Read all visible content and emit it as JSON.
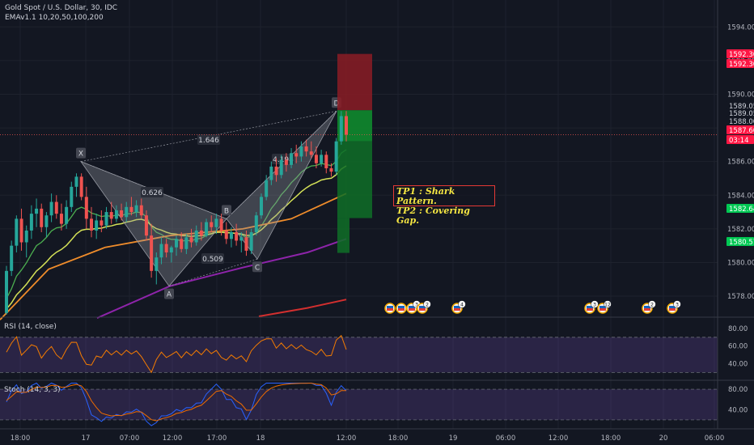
{
  "header": {
    "symbol_line": "Gold Spot / U.S. Dollar, 30, IDC",
    "ema_line": "EMAv1.1 10,20,50,100,200"
  },
  "annotations": {
    "tp1": "TP1 : Shark Pattern.",
    "tp2": "TP2 : Covering Gap."
  },
  "colors": {
    "background": "#131722",
    "bull_candle": "#26a69a",
    "bear_candle": "#ef5350",
    "ema10": "#4caf50",
    "ema20": "#d4e157",
    "ema50": "#ef8c2b",
    "ema100": "#8e24aa",
    "ema200": "#d32f2f",
    "rsi": "#f57c00",
    "stoch_k": "#2962ff",
    "stoch_d": "#ef6c00",
    "pattern_fill": "#9598a1"
  },
  "chart_data": [
    {
      "type": "candlestick",
      "title": "Gold Spot / U.S. Dollar, 30, IDC",
      "y_range": [
        1576.8,
        1595.6
      ],
      "y_ticks": [
        "1594.00",
        "1592.00",
        "1590.00",
        "1588.00",
        "1586.00",
        "1584.00",
        "1582.00",
        "1580.00",
        "1578.00"
      ],
      "x_ticks": [
        "18:00",
        "17",
        "07:00",
        "12:00",
        "17:00",
        "18",
        "12:00",
        "18:00",
        "19",
        "06:00",
        "12:00",
        "18:00",
        "20",
        "06:00"
      ],
      "price_labels": [
        {
          "value": "1592.30",
          "color": "#ff1744"
        },
        {
          "value": "1592.30",
          "color": "#ff1744"
        },
        {
          "value": "1589.05",
          "color": "#131722"
        },
        {
          "value": "1589.05",
          "color": "#131722"
        },
        {
          "value": "1588.00",
          "color": "#131722"
        },
        {
          "value": "1587.60",
          "color": "#ff1744"
        },
        {
          "value": "03:14",
          "color": "#ff1744"
        },
        {
          "value": "1582.64",
          "color": "#00c853"
        },
        {
          "value": "1580.57",
          "color": "#00c853"
        }
      ],
      "current_price": 1587.6,
      "harmonic_points": [
        {
          "label": "X",
          "price": 1586.0
        },
        {
          "label": "A",
          "price": 1578.6
        },
        {
          "label": "B",
          "price": 1582.6
        },
        {
          "label": "C",
          "price": 1580.2
        },
        {
          "label": "D",
          "price": 1589.0
        }
      ],
      "ratios": [
        "1.646",
        "0.626",
        "0.509",
        "4.198"
      ],
      "position": {
        "stop": 1592.3,
        "entry": 1589.05,
        "tp1": 1582.64,
        "tp2": 1580.57
      },
      "candles_ohlc": [
        [
          1577.0,
          1579.8,
          1576.9,
          1579.5
        ],
        [
          1579.5,
          1581.3,
          1579.2,
          1581.0
        ],
        [
          1581.0,
          1582.8,
          1580.6,
          1582.6
        ],
        [
          1582.6,
          1583.2,
          1580.7,
          1581.2
        ],
        [
          1581.2,
          1582.2,
          1580.3,
          1581.9
        ],
        [
          1581.9,
          1583.4,
          1581.4,
          1582.9
        ],
        [
          1582.9,
          1583.8,
          1582.1,
          1583.2
        ],
        [
          1583.2,
          1583.5,
          1581.8,
          1582.1
        ],
        [
          1582.1,
          1583.0,
          1581.5,
          1582.8
        ],
        [
          1582.8,
          1584.1,
          1582.4,
          1583.6
        ],
        [
          1583.6,
          1584.0,
          1582.6,
          1582.9
        ],
        [
          1582.9,
          1583.5,
          1581.9,
          1582.3
        ],
        [
          1582.3,
          1583.7,
          1582.0,
          1583.3
        ],
        [
          1583.3,
          1584.8,
          1583.0,
          1584.5
        ],
        [
          1584.5,
          1585.3,
          1583.9,
          1585.1
        ],
        [
          1585.1,
          1585.3,
          1583.7,
          1583.9
        ],
        [
          1583.9,
          1584.5,
          1582.0,
          1582.6
        ],
        [
          1582.6,
          1583.3,
          1581.5,
          1581.9
        ],
        [
          1581.9,
          1582.9,
          1581.4,
          1582.5
        ],
        [
          1582.5,
          1583.1,
          1581.8,
          1582.2
        ],
        [
          1582.2,
          1583.3,
          1582.0,
          1583.0
        ],
        [
          1583.0,
          1583.6,
          1582.3,
          1582.6
        ],
        [
          1582.6,
          1583.4,
          1582.4,
          1583.1
        ],
        [
          1583.1,
          1583.5,
          1582.5,
          1582.7
        ],
        [
          1582.7,
          1583.6,
          1582.4,
          1583.3
        ],
        [
          1583.3,
          1583.9,
          1582.8,
          1583.0
        ],
        [
          1583.0,
          1583.7,
          1582.7,
          1583.4
        ],
        [
          1583.4,
          1583.8,
          1582.6,
          1582.8
        ],
        [
          1582.8,
          1583.1,
          1581.3,
          1581.6
        ],
        [
          1581.6,
          1582.3,
          1579.1,
          1579.5
        ],
        [
          1579.5,
          1580.6,
          1578.7,
          1580.3
        ],
        [
          1580.3,
          1581.5,
          1579.9,
          1581.1
        ],
        [
          1581.1,
          1581.4,
          1580.3,
          1580.6
        ],
        [
          1580.6,
          1581.0,
          1580.0,
          1580.9
        ],
        [
          1580.9,
          1581.6,
          1580.4,
          1581.4
        ],
        [
          1581.4,
          1581.8,
          1580.6,
          1580.8
        ],
        [
          1580.8,
          1581.7,
          1580.5,
          1581.5
        ],
        [
          1581.5,
          1582.0,
          1580.9,
          1581.2
        ],
        [
          1581.2,
          1582.2,
          1581.0,
          1581.9
        ],
        [
          1581.9,
          1582.4,
          1581.3,
          1581.6
        ],
        [
          1581.6,
          1582.6,
          1581.5,
          1582.4
        ],
        [
          1582.4,
          1582.8,
          1581.8,
          1582.1
        ],
        [
          1582.1,
          1582.9,
          1581.7,
          1582.6
        ],
        [
          1582.6,
          1582.9,
          1581.6,
          1581.9
        ],
        [
          1581.9,
          1582.4,
          1581.1,
          1581.4
        ],
        [
          1581.4,
          1582.1,
          1580.9,
          1581.8
        ],
        [
          1581.8,
          1582.3,
          1581.0,
          1581.3
        ],
        [
          1581.3,
          1581.8,
          1580.6,
          1581.5
        ],
        [
          1581.5,
          1581.9,
          1580.4,
          1580.7
        ],
        [
          1580.7,
          1582.0,
          1580.5,
          1581.8
        ],
        [
          1581.8,
          1583.0,
          1581.6,
          1582.8
        ],
        [
          1582.8,
          1584.1,
          1582.6,
          1583.9
        ],
        [
          1583.9,
          1585.2,
          1583.7,
          1584.9
        ],
        [
          1584.9,
          1586.0,
          1584.6,
          1585.7
        ],
        [
          1585.7,
          1586.2,
          1584.8,
          1585.2
        ],
        [
          1585.2,
          1586.4,
          1585.0,
          1586.1
        ],
        [
          1586.1,
          1586.5,
          1585.4,
          1585.8
        ],
        [
          1585.8,
          1586.8,
          1585.6,
          1586.5
        ],
        [
          1586.5,
          1587.0,
          1585.9,
          1586.3
        ],
        [
          1586.3,
          1587.2,
          1586.0,
          1586.9
        ],
        [
          1586.9,
          1587.3,
          1586.3,
          1586.6
        ],
        [
          1586.6,
          1587.2,
          1586.2,
          1586.4
        ],
        [
          1586.4,
          1586.9,
          1585.6,
          1585.9
        ],
        [
          1585.9,
          1586.7,
          1585.7,
          1586.4
        ],
        [
          1586.4,
          1586.6,
          1585.3,
          1585.6
        ],
        [
          1585.6,
          1585.9,
          1585.1,
          1585.4
        ],
        [
          1585.4,
          1587.4,
          1585.2,
          1587.2
        ],
        [
          1587.2,
          1589.0,
          1587.0,
          1588.7
        ],
        [
          1588.7,
          1589.0,
          1587.2,
          1587.6
        ]
      ],
      "ema_series": [
        "EMA 10",
        "EMA 20",
        "EMA 50",
        "EMA 100",
        "EMA 200"
      ]
    },
    {
      "type": "line",
      "title": "RSI (14, close)",
      "y_ticks": [
        "80.00",
        "60.00",
        "40.00"
      ],
      "bands": [
        70,
        30
      ]
    },
    {
      "type": "line",
      "title": "Stoch (14, 3, 3)",
      "y_ticks": [
        "80.00",
        "40.00"
      ],
      "bands": [
        80,
        20
      ]
    }
  ]
}
